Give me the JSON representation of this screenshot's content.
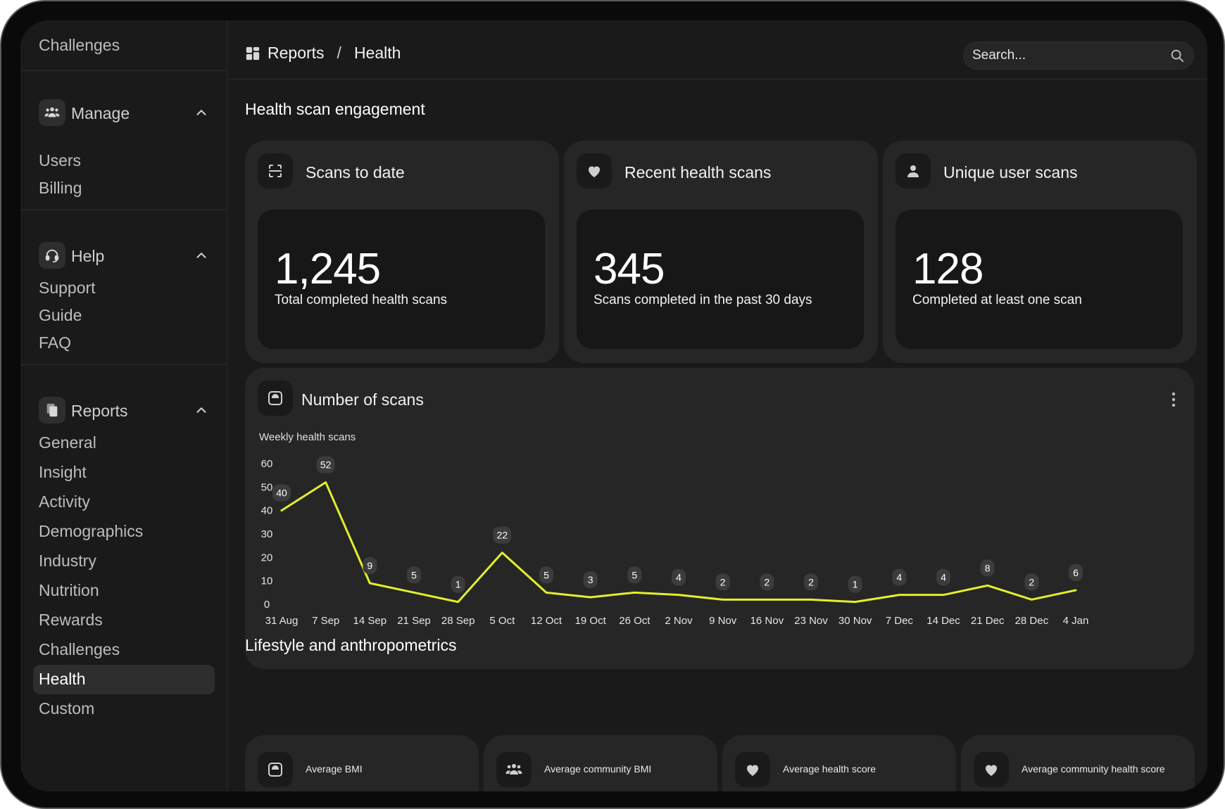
{
  "sidebar": {
    "top_label": "Challenges",
    "sections": [
      {
        "label": "Manage",
        "items": [
          "Users",
          "Billing"
        ]
      },
      {
        "label": "Help",
        "items": [
          "Support",
          "Guide",
          "FAQ"
        ]
      },
      {
        "label": "Reports",
        "items": [
          "General",
          "Insight",
          "Activity",
          "Demographics",
          "Industry",
          "Nutrition",
          "Rewards",
          "Challenges",
          "Health",
          "Custom"
        ],
        "active": "Health"
      }
    ]
  },
  "header": {
    "breadcrumb": [
      "Reports",
      "Health"
    ],
    "search_placeholder": "Search..."
  },
  "engagement": {
    "title": "Health scan engagement",
    "cards": [
      {
        "label": "Scans to date",
        "value": "1,245",
        "sub": "Total completed health scans",
        "icon": "scan-icon"
      },
      {
        "label": "Recent health scans",
        "value": "345",
        "sub": "Scans completed in the past 30 days",
        "icon": "heart-icon"
      },
      {
        "label": "Unique user scans",
        "value": "128",
        "sub": "Completed at least one scan",
        "icon": "user-icon"
      }
    ]
  },
  "chart_card": {
    "label": "Number of scans",
    "icon": "scale-icon"
  },
  "chart_data": {
    "type": "line",
    "title": "Weekly health scans",
    "xlabel": "",
    "ylabel": "",
    "ylim": [
      0,
      60
    ],
    "yticks": [
      0,
      10,
      20,
      30,
      40,
      50,
      60
    ],
    "categories": [
      "31 Aug",
      "7 Sep",
      "14 Sep",
      "21 Sep",
      "28 Sep",
      "5 Oct",
      "12 Oct",
      "19 Oct",
      "26 Oct",
      "2 Nov",
      "9 Nov",
      "16 Nov",
      "23 Nov",
      "30 Nov",
      "7 Dec",
      "14 Dec",
      "21 Dec",
      "28 Dec",
      "4 Jan"
    ],
    "values": [
      40,
      52,
      9,
      5,
      1,
      22,
      5,
      3,
      5,
      4,
      2,
      2,
      2,
      1,
      4,
      4,
      8,
      2,
      6
    ],
    "line_color": "#e4ef2b",
    "grid": false
  },
  "lifestyle": {
    "title": "Lifestyle and anthropometrics",
    "cards": [
      {
        "label": "Average BMI",
        "icon": "scale-icon"
      },
      {
        "label": "Average community BMI",
        "icon": "group-icon"
      },
      {
        "label": "Average health score",
        "icon": "heart-icon"
      },
      {
        "label": "Average community health score",
        "icon": "heart-icon"
      }
    ]
  }
}
